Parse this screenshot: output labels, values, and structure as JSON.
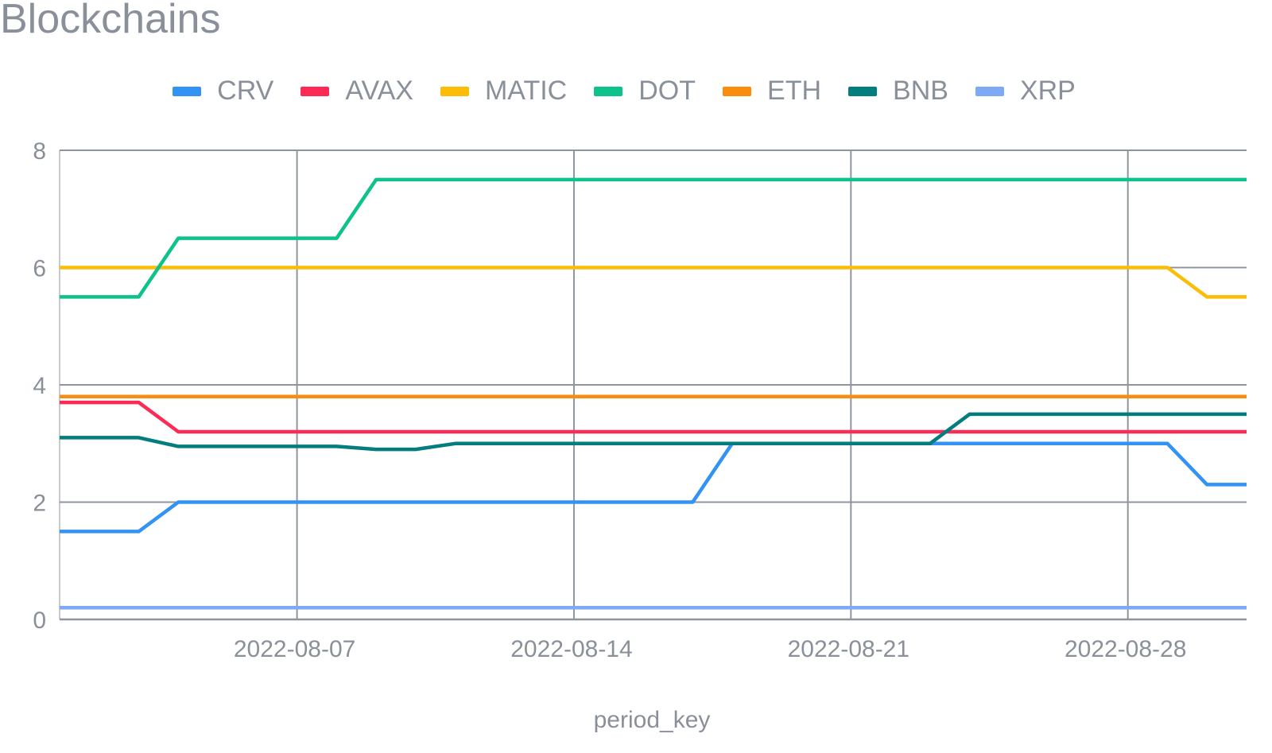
{
  "chart_data": {
    "type": "line",
    "title": "Blockchains",
    "xlabel": "period_key",
    "ylabel": "",
    "ylim": [
      0,
      8
    ],
    "yticks": [
      "0",
      "2",
      "4",
      "6",
      "8"
    ],
    "xlim": [
      "2022-08-01",
      "2022-08-31"
    ],
    "xticks": [
      "2022-08-07",
      "2022-08-14",
      "2022-08-21",
      "2022-08-28"
    ],
    "grid": true,
    "legend_position": "top",
    "x": [
      "2022-08-01",
      "2022-08-02",
      "2022-08-03",
      "2022-08-04",
      "2022-08-05",
      "2022-08-06",
      "2022-08-07",
      "2022-08-08",
      "2022-08-09",
      "2022-08-10",
      "2022-08-11",
      "2022-08-12",
      "2022-08-13",
      "2022-08-14",
      "2022-08-15",
      "2022-08-16",
      "2022-08-17",
      "2022-08-18",
      "2022-08-19",
      "2022-08-20",
      "2022-08-21",
      "2022-08-22",
      "2022-08-23",
      "2022-08-24",
      "2022-08-25",
      "2022-08-26",
      "2022-08-27",
      "2022-08-28",
      "2022-08-29",
      "2022-08-30",
      "2022-08-31"
    ],
    "series": [
      {
        "name": "CRV",
        "color": "#3393f5",
        "values": [
          1.5,
          1.5,
          1.5,
          2,
          2,
          2,
          2,
          2,
          2,
          2,
          2,
          2,
          2,
          2,
          2,
          2,
          2,
          3,
          3,
          3,
          3,
          3,
          3,
          3,
          3,
          3,
          3,
          3,
          3,
          2.3,
          2.3
        ]
      },
      {
        "name": "AVAX",
        "color": "#fd2a55",
        "values": [
          3.7,
          3.7,
          3.7,
          3.2,
          3.2,
          3.2,
          3.2,
          3.2,
          3.2,
          3.2,
          3.2,
          3.2,
          3.2,
          3.2,
          3.2,
          3.2,
          3.2,
          3.2,
          3.2,
          3.2,
          3.2,
          3.2,
          3.2,
          3.2,
          3.2,
          3.2,
          3.2,
          3.2,
          3.2,
          3.2,
          3.2
        ]
      },
      {
        "name": "MATIC",
        "color": "#fbbd08",
        "values": [
          6,
          6,
          6,
          6,
          6,
          6,
          6,
          6,
          6,
          6,
          6,
          6,
          6,
          6,
          6,
          6,
          6,
          6,
          6,
          6,
          6,
          6,
          6,
          6,
          6,
          6,
          6,
          6,
          6,
          5.5,
          5.5
        ]
      },
      {
        "name": "DOT",
        "color": "#0ec28c",
        "values": [
          5.5,
          5.5,
          5.5,
          6.5,
          6.5,
          6.5,
          6.5,
          6.5,
          7.5,
          7.5,
          7.5,
          7.5,
          7.5,
          7.5,
          7.5,
          7.5,
          7.5,
          7.5,
          7.5,
          7.5,
          7.5,
          7.5,
          7.5,
          7.5,
          7.5,
          7.5,
          7.5,
          7.5,
          7.5,
          7.5,
          7.5
        ]
      },
      {
        "name": "ETH",
        "color": "#f98d0f",
        "values": [
          3.8,
          3.8,
          3.8,
          3.8,
          3.8,
          3.8,
          3.8,
          3.8,
          3.8,
          3.8,
          3.8,
          3.8,
          3.8,
          3.8,
          3.8,
          3.8,
          3.8,
          3.8,
          3.8,
          3.8,
          3.8,
          3.8,
          3.8,
          3.8,
          3.8,
          3.8,
          3.8,
          3.8,
          3.8,
          3.8,
          3.8
        ]
      },
      {
        "name": "BNB",
        "color": "#037d7d",
        "values": [
          3.1,
          3.1,
          3.1,
          2.95,
          2.95,
          2.95,
          2.95,
          2.95,
          2.9,
          2.9,
          3,
          3,
          3,
          3,
          3,
          3,
          3,
          3,
          3,
          3,
          3,
          3,
          3,
          3.5,
          3.5,
          3.5,
          3.5,
          3.5,
          3.5,
          3.5,
          3.5
        ]
      },
      {
        "name": "XRP",
        "color": "#7eaaf5",
        "values": [
          0.2,
          0.2,
          0.2,
          0.2,
          0.2,
          0.2,
          0.2,
          0.2,
          0.2,
          0.2,
          0.2,
          0.2,
          0.2,
          0.2,
          0.2,
          0.2,
          0.2,
          0.2,
          0.2,
          0.2,
          0.2,
          0.2,
          0.2,
          0.2,
          0.2,
          0.2,
          0.2,
          0.2,
          0.2,
          0.2,
          0.2
        ]
      }
    ]
  }
}
